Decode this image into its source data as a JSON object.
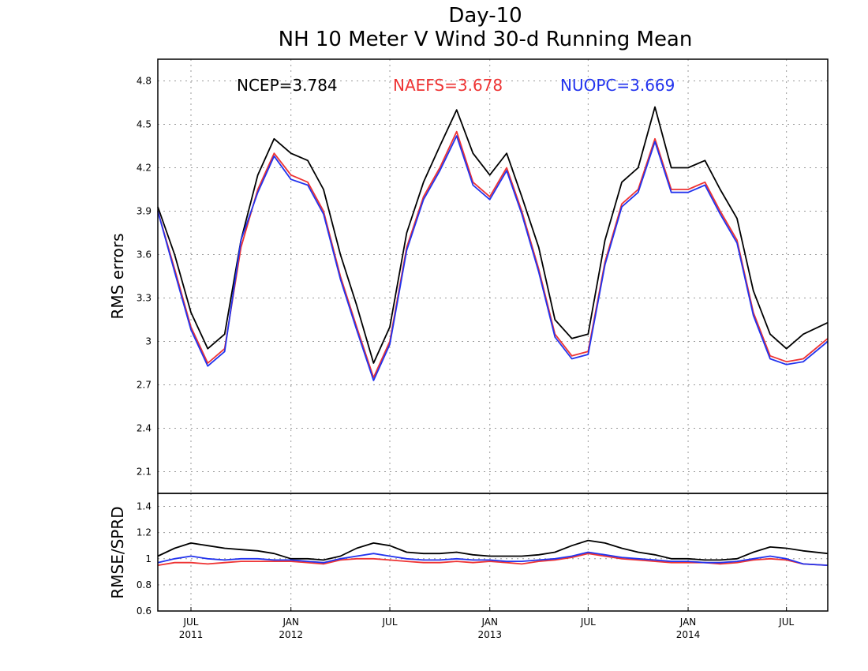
{
  "chart_data": [
    {
      "type": "line",
      "title": "Day-10",
      "subtitle": "NH 10 Meter V Wind 30-d Running Mean",
      "ylabel": "RMS errors",
      "xlabel": "",
      "ylim": [
        1.95,
        4.95
      ],
      "yticks": [
        2.1,
        2.4,
        2.7,
        3,
        3.3,
        3.6,
        3.9,
        4.2,
        4.5,
        4.8
      ],
      "ytick_labels": [
        "2.1",
        "2.4",
        "2.7",
        "3",
        "3.3",
        "3.6",
        "3.9",
        "4.2",
        "4.5",
        "4.8"
      ],
      "xlim": [
        "2011-05-01",
        "2014-09-15"
      ],
      "grid": true,
      "legend": "top, inline",
      "annotations": [
        "NCEP=3.784",
        "NAEFS=3.678",
        "NUOPC=3.669"
      ],
      "x": [
        "2011-05-01",
        "2011-06-01",
        "2011-07-01",
        "2011-08-01",
        "2011-09-01",
        "2011-10-01",
        "2011-11-01",
        "2011-12-01",
        "2012-01-01",
        "2012-02-01",
        "2012-03-01",
        "2012-04-01",
        "2012-05-01",
        "2012-06-01",
        "2012-07-01",
        "2012-08-01",
        "2012-09-01",
        "2012-10-01",
        "2012-11-01",
        "2012-12-01",
        "2013-01-01",
        "2013-02-01",
        "2013-03-01",
        "2013-04-01",
        "2013-05-01",
        "2013-06-01",
        "2013-07-01",
        "2013-08-01",
        "2013-09-01",
        "2013-10-01",
        "2013-11-01",
        "2013-12-01",
        "2014-01-01",
        "2014-02-01",
        "2014-03-01",
        "2014-04-01",
        "2014-05-01",
        "2014-06-01",
        "2014-07-01",
        "2014-08-01",
        "2014-09-15"
      ],
      "series": [
        {
          "name": "NCEP",
          "color": "#000000",
          "values": [
            3.93,
            3.6,
            3.2,
            2.95,
            3.05,
            3.7,
            4.15,
            4.4,
            4.3,
            4.25,
            4.05,
            3.6,
            3.25,
            2.85,
            3.1,
            3.75,
            4.1,
            4.35,
            4.6,
            4.3,
            4.15,
            4.3,
            4.0,
            3.65,
            3.15,
            3.02,
            3.05,
            3.7,
            4.1,
            4.2,
            4.62,
            4.2,
            4.2,
            4.25,
            4.05,
            3.85,
            3.35,
            3.05,
            2.95,
            3.05,
            3.13
          ]
        },
        {
          "name": "NAEFS",
          "color": "#ee3333",
          "values": [
            3.9,
            3.5,
            3.1,
            2.85,
            2.95,
            3.65,
            4.05,
            4.3,
            4.15,
            4.1,
            3.9,
            3.45,
            3.1,
            2.75,
            3.0,
            3.65,
            4.0,
            4.2,
            4.45,
            4.1,
            4.0,
            4.2,
            3.9,
            3.5,
            3.05,
            2.9,
            2.93,
            3.55,
            3.95,
            4.05,
            4.4,
            4.05,
            4.05,
            4.1,
            3.9,
            3.7,
            3.2,
            2.9,
            2.86,
            2.88,
            3.02
          ]
        },
        {
          "name": "NUOPC",
          "color": "#2233ee",
          "values": [
            3.9,
            3.48,
            3.08,
            2.83,
            2.93,
            3.7,
            4.03,
            4.28,
            4.12,
            4.08,
            3.88,
            3.43,
            3.08,
            2.73,
            2.98,
            3.63,
            3.98,
            4.18,
            4.42,
            4.08,
            3.98,
            4.18,
            3.88,
            3.48,
            3.03,
            2.88,
            2.91,
            3.53,
            3.93,
            4.03,
            4.38,
            4.03,
            4.03,
            4.08,
            3.88,
            3.68,
            3.18,
            2.88,
            2.84,
            2.86,
            3.0
          ]
        }
      ]
    },
    {
      "type": "line",
      "title": "",
      "ylabel": "RMSE/SPRD",
      "xlabel": "",
      "ylim": [
        0.6,
        1.5
      ],
      "yticks": [
        0.6,
        0.8,
        1,
        1.2,
        1.4
      ],
      "ytick_labels": [
        "0.6",
        "0.8",
        "1",
        "1.2",
        "1.4"
      ],
      "xlim": [
        "2011-05-01",
        "2014-09-15"
      ],
      "grid": true,
      "xtick_labels": [
        {
          "date": "2011-07-01",
          "label": "JUL",
          "year": "2011"
        },
        {
          "date": "2012-01-01",
          "label": "JAN",
          "year": "2012"
        },
        {
          "date": "2012-07-01",
          "label": "JUL",
          "year": ""
        },
        {
          "date": "2013-01-01",
          "label": "JAN",
          "year": "2013"
        },
        {
          "date": "2013-07-01",
          "label": "JUL",
          "year": ""
        },
        {
          "date": "2014-01-01",
          "label": "JAN",
          "year": "2014"
        },
        {
          "date": "2014-07-01",
          "label": "JUL",
          "year": ""
        }
      ],
      "x": [
        "2011-05-01",
        "2011-06-01",
        "2011-07-01",
        "2011-08-01",
        "2011-09-01",
        "2011-10-01",
        "2011-11-01",
        "2011-12-01",
        "2012-01-01",
        "2012-02-01",
        "2012-03-01",
        "2012-04-01",
        "2012-05-01",
        "2012-06-01",
        "2012-07-01",
        "2012-08-01",
        "2012-09-01",
        "2012-10-01",
        "2012-11-01",
        "2012-12-01",
        "2013-01-01",
        "2013-02-01",
        "2013-03-01",
        "2013-04-01",
        "2013-05-01",
        "2013-06-01",
        "2013-07-01",
        "2013-08-01",
        "2013-09-01",
        "2013-10-01",
        "2013-11-01",
        "2013-12-01",
        "2014-01-01",
        "2014-02-01",
        "2014-03-01",
        "2014-04-01",
        "2014-05-01",
        "2014-06-01",
        "2014-07-01",
        "2014-08-01",
        "2014-09-15"
      ],
      "series": [
        {
          "name": "NCEP",
          "color": "#000000",
          "values": [
            1.02,
            1.08,
            1.12,
            1.1,
            1.08,
            1.07,
            1.06,
            1.04,
            1.0,
            1.0,
            0.99,
            1.02,
            1.08,
            1.12,
            1.1,
            1.05,
            1.04,
            1.04,
            1.05,
            1.03,
            1.02,
            1.02,
            1.02,
            1.03,
            1.05,
            1.1,
            1.14,
            1.12,
            1.08,
            1.05,
            1.03,
            1.0,
            1.0,
            0.99,
            0.99,
            1.0,
            1.05,
            1.09,
            1.08,
            1.06,
            1.04
          ]
        },
        {
          "name": "NAEFS",
          "color": "#ee3333",
          "values": [
            0.95,
            0.97,
            0.97,
            0.96,
            0.97,
            0.98,
            0.98,
            0.98,
            0.98,
            0.97,
            0.96,
            0.99,
            1.0,
            1.0,
            0.99,
            0.98,
            0.97,
            0.97,
            0.98,
            0.97,
            0.98,
            0.97,
            0.96,
            0.98,
            0.99,
            1.01,
            1.04,
            1.02,
            1.0,
            0.99,
            0.98,
            0.97,
            0.97,
            0.97,
            0.96,
            0.97,
            0.99,
            1.0,
            0.99,
            0.96,
            0.95
          ]
        },
        {
          "name": "NUOPC",
          "color": "#2233ee",
          "values": [
            0.97,
            1.0,
            1.02,
            1.0,
            0.99,
            1.0,
            1.0,
            0.99,
            0.99,
            0.98,
            0.97,
            1.0,
            1.02,
            1.04,
            1.02,
            1.0,
            0.99,
            0.99,
            1.0,
            0.99,
            0.99,
            0.98,
            0.98,
            0.99,
            1.0,
            1.02,
            1.05,
            1.03,
            1.01,
            1.0,
            0.99,
            0.98,
            0.98,
            0.97,
            0.97,
            0.98,
            1.0,
            1.02,
            1.0,
            0.96,
            0.95
          ]
        }
      ]
    }
  ]
}
